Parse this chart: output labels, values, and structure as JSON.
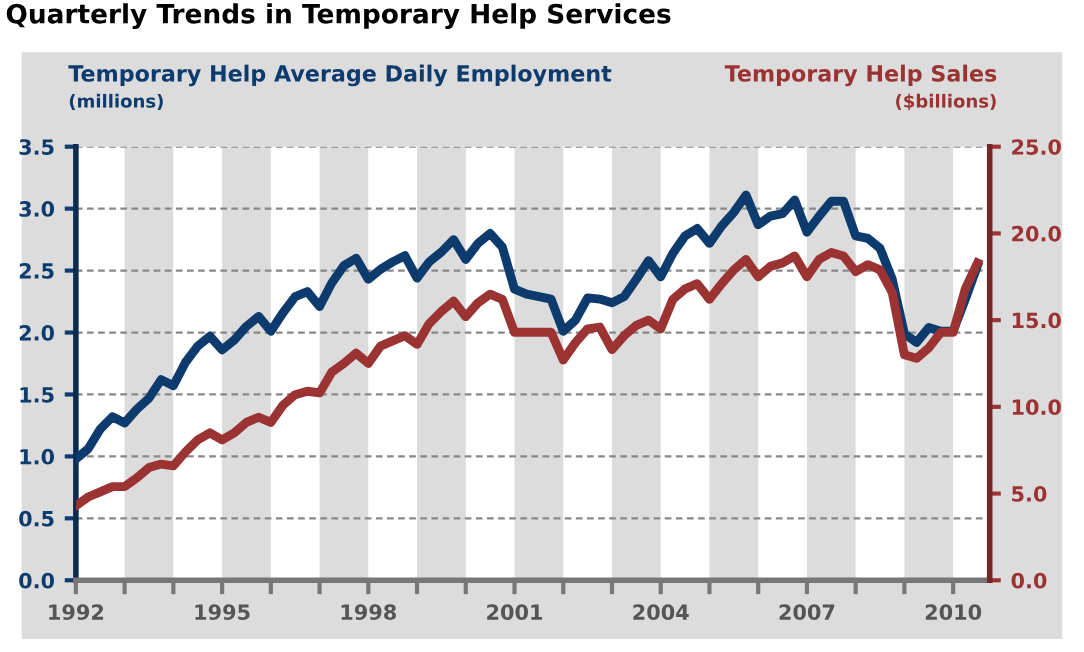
{
  "chart_data": {
    "type": "line",
    "title": "Quarterly Trends in Temporary Help Services",
    "ylabel": "Temporary Help Average Daily Employment\n(millions)",
    "y2label": "Temporary Help Sales\n($billions)",
    "x": [
      1992.0,
      1992.25,
      1992.5,
      1992.75,
      1993.0,
      1993.25,
      1993.5,
      1993.75,
      1994.0,
      1994.25,
      1994.5,
      1994.75,
      1995.0,
      1995.25,
      1995.5,
      1995.75,
      1996.0,
      1996.25,
      1996.5,
      1996.75,
      1997.0,
      1997.25,
      1997.5,
      1997.75,
      1998.0,
      1998.25,
      1998.5,
      1998.75,
      1999.0,
      1999.25,
      1999.5,
      1999.75,
      2000.0,
      2000.25,
      2000.5,
      2000.75,
      2001.0,
      2001.25,
      2001.5,
      2001.75,
      2002.0,
      2002.25,
      2002.5,
      2002.75,
      2003.0,
      2003.25,
      2003.5,
      2003.75,
      2004.0,
      2004.25,
      2004.5,
      2004.75,
      2005.0,
      2005.25,
      2005.5,
      2005.75,
      2006.0,
      2006.25,
      2006.5,
      2006.75,
      2007.0,
      2007.25,
      2007.5,
      2007.75,
      2008.0,
      2008.25,
      2008.5,
      2008.75,
      2009.0,
      2009.25,
      2009.5,
      2009.75,
      2010.0,
      2010.25,
      2010.5
    ],
    "series": [
      {
        "color": "#0d3b6e",
        "values": [
          0.98,
          1.06,
          1.22,
          1.32,
          1.27,
          1.38,
          1.47,
          1.62,
          1.57,
          1.76,
          1.89,
          1.97,
          1.86,
          1.94,
          2.05,
          2.13,
          2.01,
          2.16,
          2.29,
          2.33,
          2.21,
          2.4,
          2.54,
          2.6,
          2.43,
          2.51,
          2.57,
          2.62,
          2.44,
          2.57,
          2.65,
          2.75,
          2.59,
          2.72,
          2.8,
          2.69,
          2.35,
          2.31,
          2.29,
          2.27,
          2.01,
          2.1,
          2.28,
          2.27,
          2.24,
          2.29,
          2.43,
          2.58,
          2.45,
          2.64,
          2.78,
          2.84,
          2.72,
          2.86,
          2.97,
          3.11,
          2.87,
          2.94,
          2.96,
          3.07,
          2.81,
          2.94,
          3.06,
          3.06,
          2.78,
          2.76,
          2.68,
          2.43,
          1.99,
          1.92,
          2.04,
          2.01,
          2.01,
          2.27,
          2.54
        ]
      },
      {
        "color": "#9c3333",
        "axis": "y2",
        "values": [
          4.3,
          4.8,
          5.1,
          5.4,
          5.4,
          5.9,
          6.5,
          6.7,
          6.6,
          7.4,
          8.1,
          8.5,
          8.1,
          8.5,
          9.1,
          9.4,
          9.1,
          10.1,
          10.7,
          10.9,
          10.8,
          12.0,
          12.5,
          13.1,
          12.5,
          13.5,
          13.8,
          14.1,
          13.6,
          14.8,
          15.5,
          16.1,
          15.2,
          16.0,
          16.5,
          16.2,
          14.3,
          14.3,
          14.3,
          14.3,
          12.7,
          13.7,
          14.5,
          14.6,
          13.3,
          14.1,
          14.7,
          15.0,
          14.5,
          16.2,
          16.8,
          17.1,
          16.2,
          17.1,
          17.9,
          18.5,
          17.5,
          18.1,
          18.3,
          18.7,
          17.5,
          18.5,
          18.9,
          18.7,
          17.8,
          18.2,
          17.9,
          16.6,
          13.0,
          12.8,
          13.4,
          14.3,
          14.3,
          16.8,
          18.3
        ]
      }
    ],
    "xlim": [
      1992,
      2010.75
    ],
    "xticks": [
      1992,
      {
        "value": 1993,
        "label": null
      },
      {
        "value": 1994,
        "label": null
      },
      1995,
      {
        "value": 1996,
        "label": null
      },
      {
        "value": 1997,
        "label": null
      },
      1998,
      {
        "value": 1999,
        "label": null
      },
      {
        "value": 2000,
        "label": null
      },
      2001,
      {
        "value": 2002,
        "label": null
      },
      {
        "value": 2003,
        "label": null
      },
      2004,
      {
        "value": 2005,
        "label": null
      },
      {
        "value": 2006,
        "label": null
      },
      2007,
      {
        "value": 2008,
        "label": null
      },
      {
        "value": 2009,
        "label": null
      },
      2010
    ],
    "ylim": [
      0,
      3.5
    ],
    "yticks": [
      {
        "value": 0,
        "label": "0.0"
      },
      {
        "value": 0.5,
        "label": "0.5"
      },
      {
        "value": 1,
        "label": "1.0"
      },
      {
        "value": 1.5,
        "label": "1.5"
      },
      {
        "value": 2,
        "label": "2.0"
      },
      {
        "value": 2.5,
        "label": "2.5"
      },
      {
        "value": 3,
        "label": "3.0"
      },
      {
        "value": 3.5,
        "label": "3.5"
      }
    ],
    "y2lim": [
      0,
      25
    ],
    "y2ticks": [
      {
        "value": 0,
        "label": "0.0"
      },
      {
        "value": 5,
        "label": "5.0"
      },
      {
        "value": 10,
        "label": "10.0"
      },
      {
        "value": 15,
        "label": "15.0"
      },
      {
        "value": 20,
        "label": "20.0"
      },
      {
        "value": 25,
        "label": "25.0"
      }
    ],
    "bands": [
      {
        "axis": "x",
        "from": 1993,
        "to": 1994,
        "color": "#dcdcdc"
      },
      {
        "axis": "x",
        "from": 1995,
        "to": 1996,
        "color": "#dcdcdc"
      },
      {
        "axis": "x",
        "from": 1997,
        "to": 1998,
        "color": "#dcdcdc"
      },
      {
        "axis": "x",
        "from": 1999,
        "to": 2000,
        "color": "#dcdcdc"
      },
      {
        "axis": "x",
        "from": 2001,
        "to": 2002,
        "color": "#dcdcdc"
      },
      {
        "axis": "x",
        "from": 2003,
        "to": 2004,
        "color": "#dcdcdc"
      },
      {
        "axis": "x",
        "from": 2005,
        "to": 2006,
        "color": "#dcdcdc"
      },
      {
        "axis": "x",
        "from": 2007,
        "to": 2008,
        "color": "#dcdcdc"
      },
      {
        "axis": "x",
        "from": 2009,
        "to": 2010,
        "color": "#dcdcdc"
      }
    ],
    "grid": "y",
    "legend": false,
    "line_style": "solid",
    "marker": "none"
  }
}
